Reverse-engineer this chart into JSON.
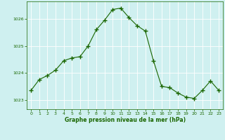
{
  "x": [
    0,
    1,
    2,
    3,
    4,
    5,
    6,
    7,
    8,
    9,
    10,
    11,
    12,
    13,
    14,
    15,
    16,
    17,
    18,
    19,
    20,
    21,
    22,
    23
  ],
  "y": [
    1023.35,
    1023.75,
    1023.9,
    1024.1,
    1024.45,
    1024.55,
    1024.6,
    1025.0,
    1025.6,
    1025.95,
    1026.35,
    1026.4,
    1026.05,
    1025.75,
    1025.55,
    1024.45,
    1023.5,
    1023.45,
    1023.25,
    1023.1,
    1023.05,
    1023.35,
    1023.7,
    1023.35
  ],
  "line_color": "#1a6600",
  "marker_color": "#1a6600",
  "bg_color": "#cff0f0",
  "grid_color": "#ffffff",
  "xlabel": "Graphe pression niveau de la mer (hPa)",
  "xlabel_color": "#1a6600",
  "tick_color": "#1a6600",
  "yticks": [
    1023,
    1024,
    1025,
    1026
  ],
  "xticks": [
    0,
    1,
    2,
    3,
    4,
    5,
    6,
    7,
    8,
    9,
    10,
    11,
    12,
    13,
    14,
    15,
    16,
    17,
    18,
    19,
    20,
    21,
    22,
    23
  ],
  "ylim": [
    1022.65,
    1026.65
  ],
  "xlim": [
    -0.5,
    23.5
  ]
}
